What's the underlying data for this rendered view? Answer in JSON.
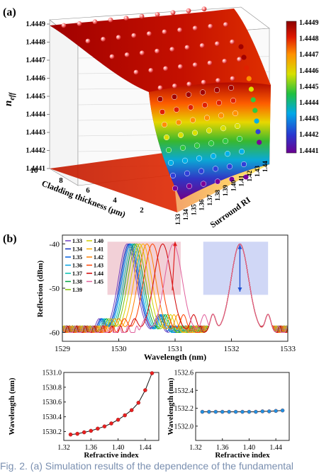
{
  "panel_labels": {
    "a": "(a)",
    "b": "(b)"
  },
  "caption": "Fig. 2. (a) Simulation results of the dependence of the fundamental",
  "chart_data": [
    {
      "type": "surface3d",
      "panel": "(a)",
      "zlabel": "n_eff",
      "zlabel_main": "n",
      "zlabel_sub": "eff",
      "xlabel": "Cladding thickness (μm)",
      "ylabel": "Surround RI",
      "ztick_labels": [
        "1.4449",
        "1.4448",
        "1.4447",
        "1.4446",
        "1.4445",
        "1.4444",
        "1.4443",
        "1.4442",
        "1.4441"
      ],
      "xtick_labels": [
        "10",
        "8",
        "6",
        "4",
        "2"
      ],
      "ytick_labels": [
        "1.33",
        "1.34",
        "1.35",
        "1.36",
        "1.37",
        "1.38",
        "1.39",
        "1.40",
        "1.41",
        "1.42",
        "1.43",
        "1.44"
      ],
      "colorbar_range": [
        1.4441,
        1.4449
      ],
      "colorbar_ticks": [
        "1.4449",
        "1.4448",
        "1.4447",
        "1.4446",
        "1.4445",
        "1.4444",
        "1.4443",
        "1.4442",
        "1.4441"
      ],
      "marker_rows_neff": [
        1.4449,
        1.4448,
        1.4447,
        1.4446,
        1.4445,
        1.4444,
        1.4443,
        1.44425,
        1.4442,
        1.44415
      ],
      "colors": [
        "#7a0099",
        "#3040d8",
        "#00b0e8",
        "#30c840",
        "#d8e000",
        "#ff9000",
        "#e02000",
        "#a00000"
      ]
    },
    {
      "type": "line",
      "panel": "(b)",
      "xlabel": "Wavelength (nm)",
      "ylabel": "Reflection (dBm)",
      "xlim": [
        1529,
        1533
      ],
      "ylim": [
        -62,
        -38
      ],
      "xticks": [
        "1529",
        "1530",
        "1531",
        "1532",
        "1533"
      ],
      "yticks": [
        "-40",
        "-50",
        "-60"
      ],
      "legend": [
        "1.33",
        "1.34",
        "1.35",
        "1.36",
        "1.37",
        "1.38",
        "1.39",
        "1.40",
        "1.41",
        "1.42",
        "1.43",
        "1.44",
        "1.45"
      ],
      "legend_colors": [
        "#7040c0",
        "#1030c0",
        "#0060e0",
        "#00a0e0",
        "#00c0b0",
        "#00a040",
        "#80c000",
        "#d0d000",
        "#ffb000",
        "#ff8000",
        "#ff4000",
        "#d00000",
        "#e0609c"
      ],
      "left_peak_centers": [
        1530.15,
        1530.18,
        1530.2,
        1530.22,
        1530.25,
        1530.28,
        1530.32,
        1530.37,
        1530.43,
        1530.5,
        1530.6,
        1530.78,
        1530.97
      ],
      "right_peak_center": 1532.15,
      "highlight_regions": [
        {
          "x": [
            1529.8,
            1531.1
          ],
          "y": [
            -51.5,
            -39.5
          ],
          "color": "#f0c8d0"
        },
        {
          "x": [
            1531.5,
            1532.65
          ],
          "y": [
            -51.5,
            -39.5
          ],
          "color": "#c8d0f4"
        }
      ]
    },
    {
      "type": "scatter",
      "xlabel": "Refractive index",
      "ylabel": "Wavelength (nm)",
      "xlim": [
        1.32,
        1.46
      ],
      "ylim": [
        1530.08,
        1531.0
      ],
      "xticks": [
        "1.32",
        "1.36",
        "1.40",
        "1.44"
      ],
      "yticks": [
        "1530.2",
        "1530.4",
        "1530.6",
        "1530.8",
        "1531.0"
      ],
      "x": [
        1.33,
        1.34,
        1.35,
        1.36,
        1.37,
        1.38,
        1.39,
        1.4,
        1.41,
        1.42,
        1.43,
        1.44,
        1.45
      ],
      "y": [
        1530.16,
        1530.17,
        1530.19,
        1530.21,
        1530.24,
        1530.27,
        1530.31,
        1530.36,
        1530.42,
        1530.49,
        1530.59,
        1530.76,
        1530.99
      ],
      "marker_color": "#e82020"
    },
    {
      "type": "scatter",
      "xlabel": "Refractive index",
      "ylabel": "Wavelength (nm)",
      "xlim": [
        1.32,
        1.46
      ],
      "ylim": [
        1531.84,
        1532.6
      ],
      "xticks": [
        "1.32",
        "1.36",
        "1.40",
        "1.44"
      ],
      "yticks": [
        "1532.0",
        "1532.2",
        "1532.4",
        "1532.6"
      ],
      "x": [
        1.33,
        1.34,
        1.35,
        1.36,
        1.37,
        1.38,
        1.39,
        1.4,
        1.41,
        1.42,
        1.43,
        1.44,
        1.45
      ],
      "y": [
        1532.16,
        1532.16,
        1532.16,
        1532.16,
        1532.16,
        1532.16,
        1532.16,
        1532.16,
        1532.16,
        1532.165,
        1532.165,
        1532.17,
        1532.175
      ],
      "marker_color": "#2090e0"
    }
  ]
}
